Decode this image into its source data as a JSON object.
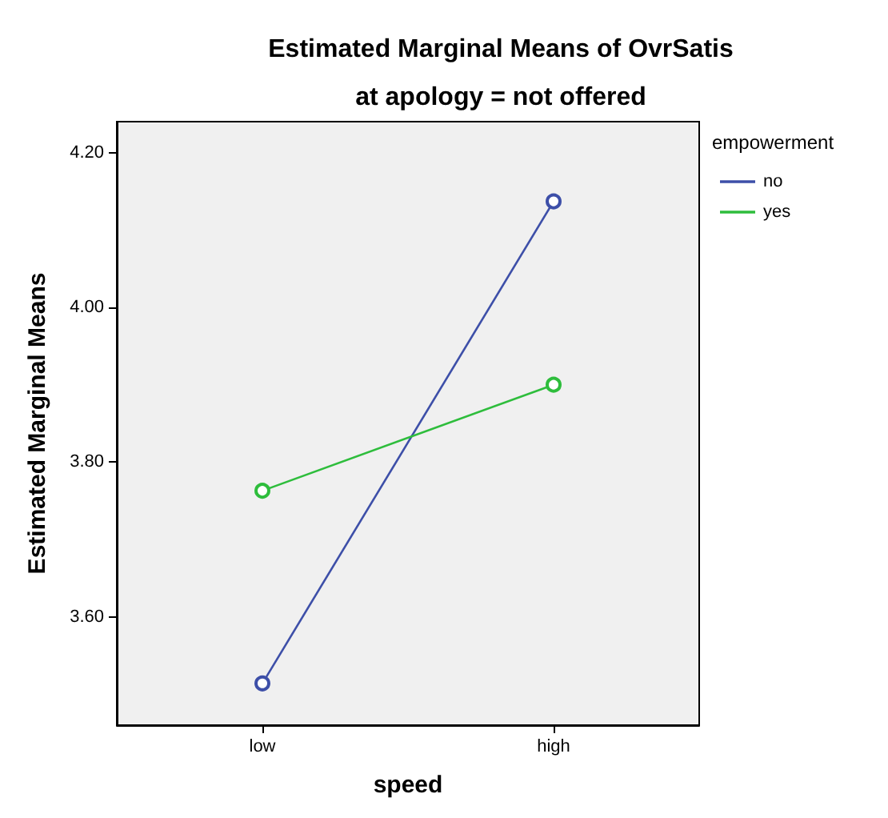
{
  "chart_data": {
    "type": "line",
    "title": "Estimated Marginal Means of OvrSatis",
    "subtitle": "at apology = not offered",
    "xlabel": "speed",
    "ylabel": "Estimated Marginal Means",
    "legend_title": "empowerment",
    "categories": [
      "low",
      "high"
    ],
    "series": [
      {
        "name": "no",
        "color": "#3d4fa8",
        "values": [
          3.514,
          4.137
        ]
      },
      {
        "name": "yes",
        "color": "#2ebd3c",
        "values": [
          3.763,
          3.9
        ]
      }
    ],
    "ylim": [
      3.46,
      4.24
    ],
    "yticks": [
      {
        "value": 3.6,
        "label": "3.60"
      },
      {
        "value": 3.8,
        "label": "3.80"
      },
      {
        "value": 4.0,
        "label": "4.00"
      },
      {
        "value": 4.2,
        "label": "4.20"
      }
    ],
    "grid": false,
    "legend": "right",
    "marker": "circle",
    "line_style": "solid"
  }
}
